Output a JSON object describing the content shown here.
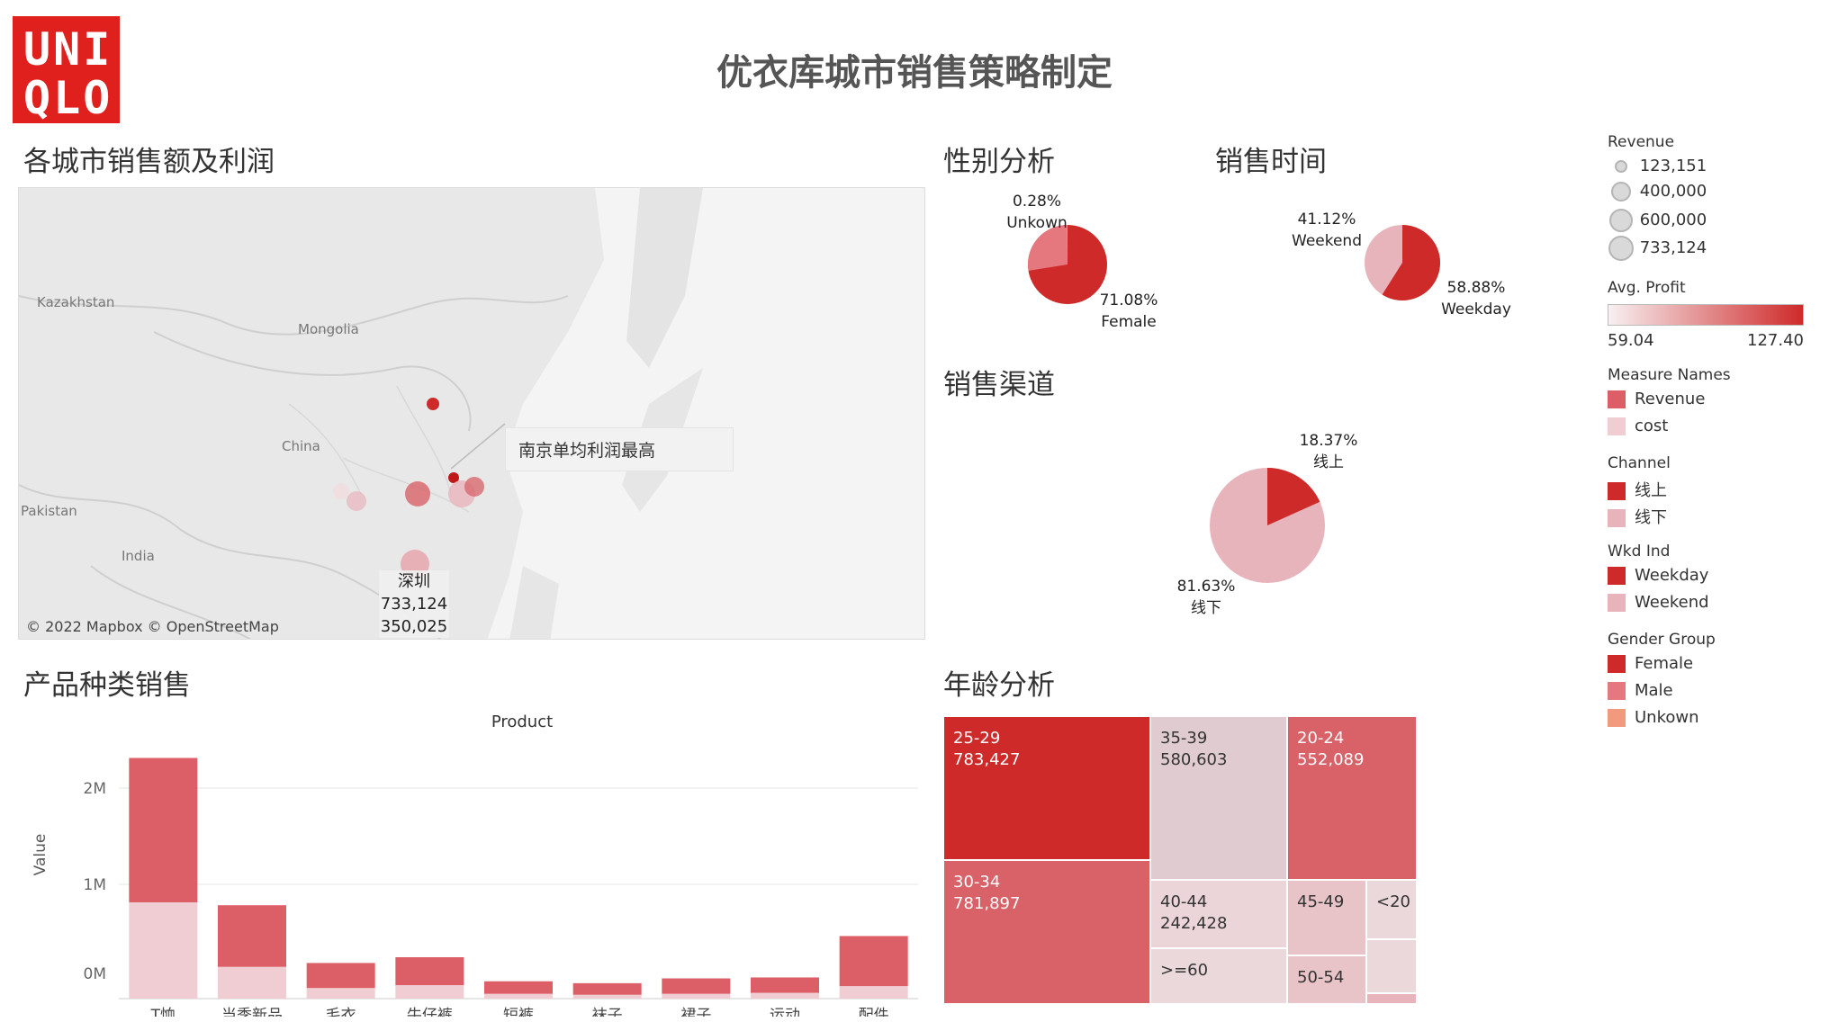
{
  "logo": {
    "line1": "UNI",
    "line2": "QLO"
  },
  "title": "优衣库城市销售策略制定",
  "sections": {
    "map": "各城市销售额及利润",
    "gender": "性别分析",
    "time": "销售时间",
    "channel": "销售渠道",
    "product": "产品种类销售",
    "age": "年龄分析"
  },
  "map": {
    "labels": {
      "kazakhstan": "Kazakhstan",
      "mongolia": "Mongolia",
      "china": "China",
      "pakistan": "Pakistan",
      "india": "India"
    },
    "callout": "南京单均利润最高",
    "tooltip": {
      "city": "深圳",
      "revenue": "733,124",
      "profit": "350,025"
    },
    "attribution": "© 2022 Mapbox © OpenStreetMap"
  },
  "pies": {
    "gender": {
      "unknown_pct": "0.28%",
      "unknown_label": "Unkown",
      "female_pct": "71.08%",
      "female_label": "Female"
    },
    "time": {
      "weekend_pct": "41.12%",
      "weekend_label": "Weekend",
      "weekday_pct": "58.88%",
      "weekday_label": "Weekday"
    },
    "channel": {
      "online_pct": "18.37%",
      "online_label": "线上",
      "offline_pct": "81.63%",
      "offline_label": "线下"
    }
  },
  "chart_data": {
    "type": "bar",
    "title": "Product",
    "xlabel": "",
    "ylabel": "Value",
    "categories": [
      "T恤",
      "当季新品",
      "毛衣",
      "牛仔裤",
      "短裤",
      "袜子",
      "裙子",
      "运动",
      "配件"
    ],
    "series": [
      {
        "name": "Revenue",
        "values": [
          1500000,
          640000,
          260000,
          290000,
          130000,
          120000,
          160000,
          160000,
          520000
        ]
      },
      {
        "name": "cost",
        "values": [
          1000000,
          330000,
          110000,
          140000,
          50000,
          40000,
          50000,
          60000,
          130000
        ]
      }
    ],
    "stacked": true,
    "yticks": [
      "0M",
      "1M",
      "2M"
    ],
    "ylim": [
      0,
      2500000
    ],
    "colors": {
      "Revenue": "#dc5f67",
      "cost": "#f0cdd2"
    }
  },
  "treemap": [
    {
      "label": "25-29",
      "value": "783,427",
      "color": "#cf2a2a",
      "text": "light"
    },
    {
      "label": "35-39",
      "value": "580,603",
      "color": "#e0ccd0",
      "text": "dark"
    },
    {
      "label": "20-24",
      "value": "552,089",
      "color": "#d86268",
      "text": "light"
    },
    {
      "label": "30-34",
      "value": "781,897",
      "color": "#d86268",
      "text": "light"
    },
    {
      "label": "40-44",
      "value": "242,428",
      "color": "#ebd5d8",
      "text": "dark"
    },
    {
      "label": "45-49",
      "value": "",
      "color": "#e8c3c8",
      "text": "dark"
    },
    {
      "label": "<20",
      "value": "",
      "color": "#ebd8da",
      "text": "dark"
    },
    {
      "label": ">=60",
      "value": "",
      "color": "#ebd8da",
      "text": "dark"
    },
    {
      "label": "50-54",
      "value": "",
      "color": "#e8c3c8",
      "text": "dark"
    }
  ],
  "legend": {
    "revenue": {
      "title": "Revenue",
      "items": [
        "123,151",
        "400,000",
        "600,000",
        "733,124"
      ]
    },
    "profit": {
      "title": "Avg. Profit",
      "min": "59.04",
      "max": "127.40"
    },
    "measure": {
      "title": "Measure Names",
      "items": [
        {
          "label": "Revenue",
          "color": "#dc5f67"
        },
        {
          "label": "cost",
          "color": "#f0cdd2"
        }
      ]
    },
    "channel": {
      "title": "Channel",
      "items": [
        {
          "label": "线上",
          "color": "#cf2a2a"
        },
        {
          "label": "线下",
          "color": "#e8b4bc"
        }
      ]
    },
    "wkd": {
      "title": "Wkd Ind",
      "items": [
        {
          "label": "Weekday",
          "color": "#cf2a2a"
        },
        {
          "label": "Weekend",
          "color": "#e8b4bc"
        }
      ]
    },
    "gender": {
      "title": "Gender Group",
      "items": [
        {
          "label": "Female",
          "color": "#cf2a2a"
        },
        {
          "label": "Male",
          "color": "#e5777f"
        },
        {
          "label": "Unkown",
          "color": "#f29a7e"
        }
      ]
    }
  }
}
